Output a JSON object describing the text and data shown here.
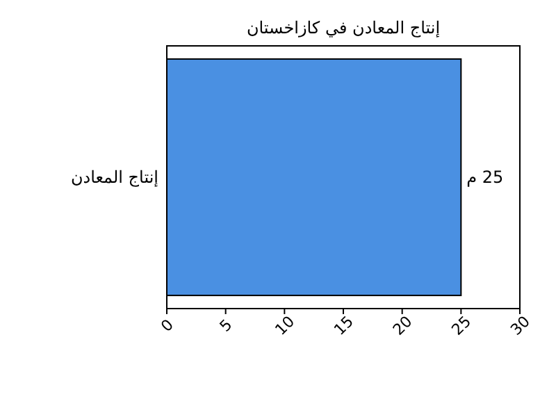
{
  "chart_data": {
    "type": "bar",
    "orientation": "horizontal",
    "title": "إنتاج المعادن في كازاخستان",
    "categories": [
      "إنتاج المعادن"
    ],
    "values": [
      25
    ],
    "value_labels": [
      "25 م"
    ],
    "color": "#4a90e2",
    "xlim": [
      0,
      30
    ],
    "xticks": [
      0,
      5,
      10,
      15,
      20,
      25,
      30
    ],
    "grid": false
  }
}
